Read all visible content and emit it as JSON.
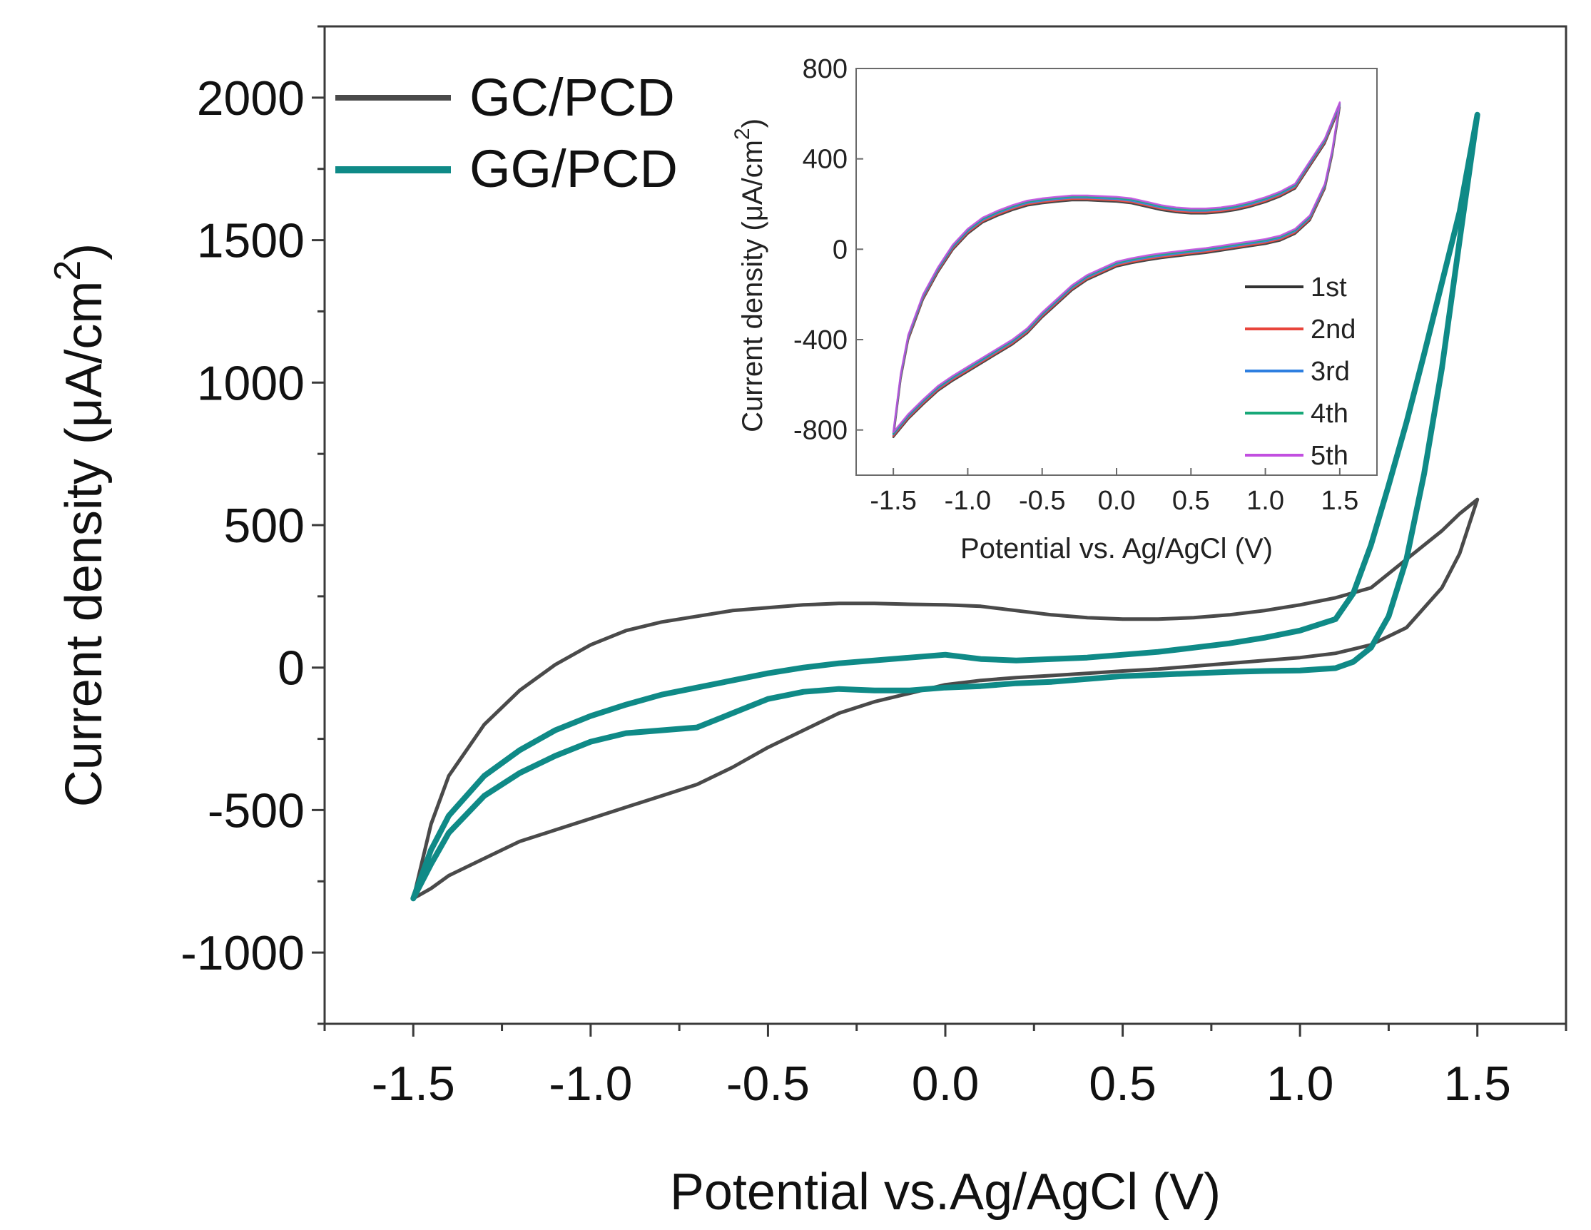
{
  "chart_data": [
    {
      "id": "main",
      "type": "line",
      "xlabel": "Potential vs.Ag/AgCl (V)",
      "ylabel_main": "Current density (μA/cm",
      "ylabel_sup": "2",
      "ylabel_close": ")",
      "xlim": [
        -1.75,
        1.75
      ],
      "ylim": [
        -1250,
        2250
      ],
      "xticks": [
        -1.5,
        -1.0,
        -0.5,
        0.0,
        0.5,
        1.0,
        1.5
      ],
      "xtick_labels": [
        "-1.5",
        "-1.0",
        "-0.5",
        "0.0",
        "0.5",
        "1.0",
        "1.5"
      ],
      "yticks": [
        -1000,
        -500,
        0,
        500,
        1000,
        1500,
        2000
      ],
      "ytick_labels": [
        "-1000",
        "-500",
        "0",
        "500",
        "1000",
        "1500",
        "2000"
      ],
      "legend_position": "top-left",
      "series": [
        {
          "name": "GC/PCD",
          "color": "#4a4a4a",
          "x": [
            -1.5,
            -1.45,
            -1.4,
            -1.3,
            -1.2,
            -1.1,
            -1.0,
            -0.9,
            -0.8,
            -0.7,
            -0.6,
            -0.5,
            -0.4,
            -0.3,
            -0.2,
            -0.1,
            0.0,
            0.1,
            0.2,
            0.3,
            0.4,
            0.5,
            0.6,
            0.7,
            0.8,
            0.9,
            1.0,
            1.1,
            1.2,
            1.3,
            1.4,
            1.45,
            1.5,
            1.5,
            1.45,
            1.4,
            1.3,
            1.2,
            1.1,
            1.0,
            0.9,
            0.8,
            0.7,
            0.6,
            0.5,
            0.4,
            0.3,
            0.2,
            0.1,
            0.0,
            -0.1,
            -0.2,
            -0.3,
            -0.4,
            -0.5,
            -0.6,
            -0.7,
            -0.8,
            -0.9,
            -1.0,
            -1.1,
            -1.2,
            -1.3,
            -1.4,
            -1.45,
            -1.5
          ],
          "y": [
            -810,
            -550,
            -380,
            -200,
            -80,
            10,
            80,
            130,
            160,
            180,
            200,
            210,
            220,
            225,
            225,
            222,
            220,
            215,
            200,
            185,
            175,
            170,
            170,
            175,
            185,
            200,
            220,
            245,
            280,
            380,
            480,
            540,
            590,
            590,
            400,
            280,
            140,
            80,
            50,
            35,
            25,
            15,
            5,
            -5,
            -12,
            -20,
            -28,
            -35,
            -45,
            -60,
            -90,
            -120,
            -160,
            -220,
            -280,
            -350,
            -410,
            -450,
            -490,
            -530,
            -570,
            -610,
            -670,
            -730,
            -775,
            -810
          ]
        },
        {
          "name": "GG/PCD",
          "color": "#0f8a87",
          "x": [
            -1.5,
            -1.45,
            -1.4,
            -1.3,
            -1.2,
            -1.1,
            -1.0,
            -0.9,
            -0.8,
            -0.7,
            -0.6,
            -0.5,
            -0.4,
            -0.3,
            -0.2,
            -0.1,
            0.0,
            0.1,
            0.2,
            0.3,
            0.4,
            0.5,
            0.6,
            0.7,
            0.8,
            0.9,
            1.0,
            1.1,
            1.15,
            1.2,
            1.25,
            1.3,
            1.35,
            1.4,
            1.45,
            1.5,
            1.5,
            1.45,
            1.4,
            1.35,
            1.3,
            1.25,
            1.2,
            1.15,
            1.1,
            1.0,
            0.9,
            0.8,
            0.7,
            0.6,
            0.5,
            0.4,
            0.3,
            0.2,
            0.1,
            0.0,
            -0.1,
            -0.2,
            -0.3,
            -0.4,
            -0.5,
            -0.6,
            -0.7,
            -0.8,
            -0.9,
            -1.0,
            -1.1,
            -1.2,
            -1.3,
            -1.4,
            -1.45,
            -1.5
          ],
          "y": [
            -810,
            -640,
            -520,
            -380,
            -290,
            -220,
            -170,
            -130,
            -95,
            -70,
            -45,
            -20,
            0,
            15,
            25,
            35,
            45,
            30,
            25,
            30,
            35,
            45,
            55,
            70,
            85,
            105,
            130,
            170,
            260,
            430,
            640,
            860,
            1100,
            1350,
            1600,
            1940,
            1940,
            1500,
            1050,
            680,
            380,
            180,
            70,
            20,
            -2,
            -10,
            -12,
            -15,
            -20,
            -25,
            -30,
            -40,
            -50,
            -55,
            -65,
            -70,
            -80,
            -80,
            -75,
            -85,
            -110,
            -160,
            -210,
            -220,
            -230,
            -260,
            -310,
            -370,
            -450,
            -580,
            -690,
            -810
          ]
        }
      ]
    },
    {
      "id": "inset",
      "type": "line",
      "xlabel": "Potential vs. Ag/AgCl (V)",
      "ylabel_main": "Current density (μA/cm",
      "ylabel_sup": "2",
      "ylabel_close": ")",
      "xlim": [
        -1.75,
        1.75
      ],
      "ylim": [
        -1000,
        800
      ],
      "xticks": [
        -1.5,
        -1.0,
        -0.5,
        0.0,
        0.5,
        1.0,
        1.5
      ],
      "xtick_labels": [
        "-1.5",
        "-1.0",
        "-0.5",
        "0.0",
        "0.5",
        "1.0",
        "1.5"
      ],
      "yticks": [
        -800,
        -400,
        0,
        400,
        800
      ],
      "ytick_labels": [
        "-800",
        "-400",
        "0",
        "400",
        "800"
      ],
      "legend_position": "bottom-right",
      "series": [
        {
          "name": "1st",
          "color": "#333333",
          "offset": -12
        },
        {
          "name": "2nd",
          "color": "#e8453c",
          "offset": -6
        },
        {
          "name": "3rd",
          "color": "#2e7fe0",
          "offset": 0
        },
        {
          "name": "4th",
          "color": "#18a878",
          "offset": 5
        },
        {
          "name": "5th",
          "color": "#c24fe0",
          "offset": 10
        }
      ],
      "base_x": [
        -1.5,
        -1.45,
        -1.4,
        -1.3,
        -1.2,
        -1.1,
        -1.0,
        -0.9,
        -0.8,
        -0.7,
        -0.6,
        -0.5,
        -0.4,
        -0.3,
        -0.2,
        -0.1,
        0.0,
        0.1,
        0.2,
        0.3,
        0.4,
        0.5,
        0.6,
        0.7,
        0.8,
        0.9,
        1.0,
        1.1,
        1.2,
        1.3,
        1.4,
        1.45,
        1.5,
        1.5,
        1.45,
        1.4,
        1.3,
        1.2,
        1.1,
        1.0,
        0.9,
        0.8,
        0.7,
        0.6,
        0.5,
        0.4,
        0.3,
        0.2,
        0.1,
        0.0,
        -0.1,
        -0.2,
        -0.3,
        -0.4,
        -0.5,
        -0.6,
        -0.7,
        -0.8,
        -0.9,
        -1.0,
        -1.1,
        -1.2,
        -1.3,
        -1.4,
        -1.45,
        -1.5
      ],
      "base_y": [
        -820,
        -560,
        -390,
        -210,
        -90,
        10,
        80,
        130,
        160,
        185,
        205,
        215,
        222,
        228,
        228,
        225,
        222,
        215,
        200,
        185,
        175,
        170,
        170,
        175,
        185,
        200,
        220,
        245,
        280,
        380,
        480,
        560,
        640,
        640,
        430,
        280,
        140,
        80,
        50,
        35,
        25,
        15,
        5,
        -5,
        -12,
        -20,
        -28,
        -38,
        -50,
        -65,
        -95,
        -125,
        -170,
        -230,
        -290,
        -360,
        -410,
        -450,
        -490,
        -530,
        -570,
        -615,
        -675,
        -740,
        -780,
        -820
      ]
    }
  ]
}
